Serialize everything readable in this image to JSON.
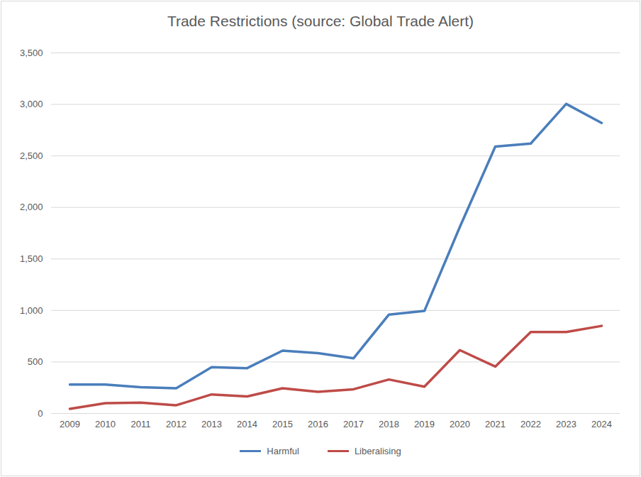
{
  "chart_data": {
    "type": "line",
    "title": "Trade Restrictions (source: Global Trade Alert)",
    "categories": [
      "2009",
      "2010",
      "2011",
      "2012",
      "2013",
      "2014",
      "2015",
      "2016",
      "2017",
      "2018",
      "2019",
      "2020",
      "2021",
      "2022",
      "2023",
      "2024"
    ],
    "series": [
      {
        "name": "Harmful",
        "color": "#4a7ebb",
        "values": [
          280,
          280,
          255,
          245,
          450,
          440,
          610,
          585,
          535,
          960,
          995,
          1810,
          2590,
          2620,
          3005,
          2820
        ]
      },
      {
        "name": "Liberalising",
        "color": "#be4b48",
        "values": [
          45,
          100,
          105,
          80,
          185,
          165,
          245,
          210,
          235,
          330,
          260,
          615,
          455,
          790,
          790,
          850
        ]
      }
    ],
    "ylim": [
      0,
      3500
    ],
    "yticks": [
      0,
      500,
      1000,
      1500,
      2000,
      2500,
      3000,
      3500
    ],
    "grid": true,
    "legend": "bottom"
  }
}
